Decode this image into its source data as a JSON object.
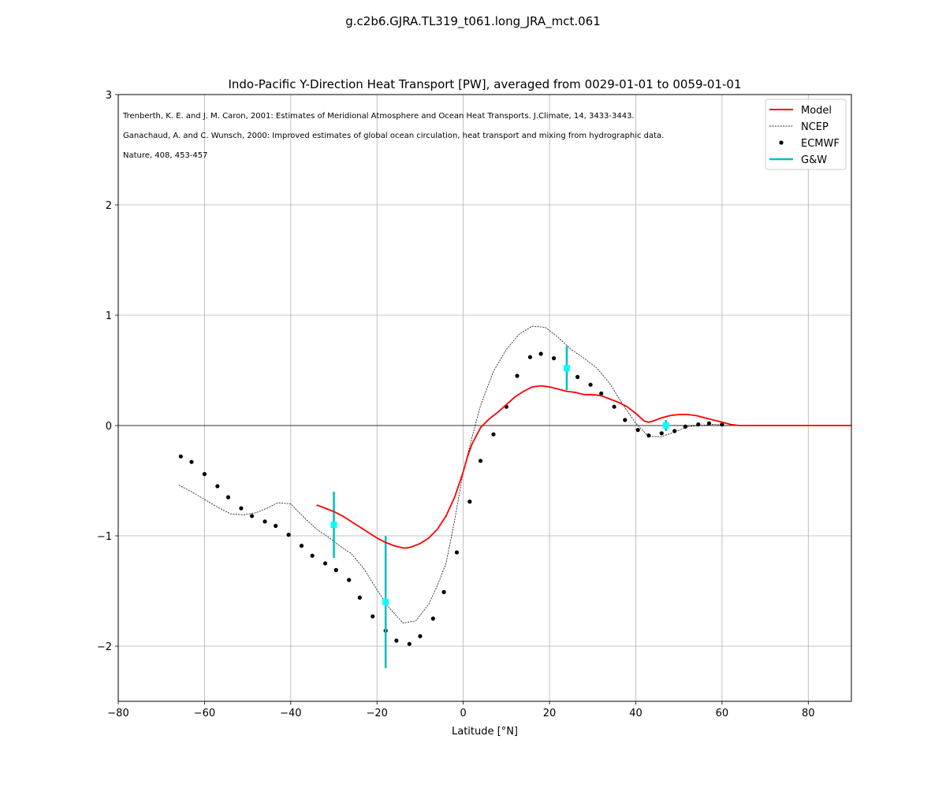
{
  "figure": {
    "suptitle": "g.c2b6.GJRA.TL319_t061.long_JRA_mct.061"
  },
  "chart_data": {
    "type": "line",
    "title": "Indo-Pacific Y-Direction Heat Transport [PW], averaged from 0029-01-01 to 0059-01-01",
    "xlabel": "Latitude [°N]",
    "ylabel": "",
    "xlim": [
      -80,
      90
    ],
    "ylim": [
      -2.5,
      3
    ],
    "xticks": [
      -80,
      -60,
      -40,
      -20,
      0,
      20,
      40,
      60,
      80
    ],
    "xtick_labels": [
      "−80",
      "−60",
      "−40",
      "−20",
      "0",
      "20",
      "40",
      "60",
      "80"
    ],
    "yticks": [
      -2,
      -1,
      0,
      1,
      2,
      3
    ],
    "ytick_labels": [
      "−2",
      "−1",
      "0",
      "1",
      "2",
      "3"
    ],
    "grid": true,
    "zero_line": true,
    "legend_position": "top-right",
    "annotations": [
      "Trenberth, K. E. and J. M. Caron, 2001: Estimates of Meridional Atmosphere and Ocean Heat Transports. J.Climate, 14, 3433-3443.",
      "Ganachaud, A. and C. Wunsch, 2000: Improved estimates of global ocean circulation, heat transport and mixing from hydrographic data.",
      "Nature, 408, 453-457"
    ],
    "colors": {
      "model": "#ff0000",
      "ncep": "#000000",
      "ecmwf": "#000000",
      "gw": "#00bfbf",
      "gw_marker": "#00ffff",
      "grid": "#b0b0b0"
    },
    "series": [
      {
        "name": "Model",
        "style": "solid-line",
        "x": [
          -34,
          -32,
          -30,
          -28,
          -26,
          -24,
          -22,
          -20,
          -18,
          -16,
          -14,
          -13,
          -12,
          -10,
          -8,
          -6,
          -4,
          -2,
          0,
          1,
          2,
          4,
          6,
          8,
          10,
          12,
          14,
          16,
          18,
          20,
          22,
          24,
          26,
          28,
          30,
          32,
          34,
          36,
          38,
          40,
          42,
          43,
          44,
          46,
          48,
          50,
          52,
          54,
          56,
          58,
          60,
          62,
          64,
          70,
          80,
          90
        ],
        "y": [
          -0.72,
          -0.75,
          -0.78,
          -0.82,
          -0.87,
          -0.92,
          -0.97,
          -1.02,
          -1.06,
          -1.09,
          -1.11,
          -1.11,
          -1.1,
          -1.07,
          -1.02,
          -0.94,
          -0.82,
          -0.65,
          -0.42,
          -0.28,
          -0.17,
          -0.02,
          0.06,
          0.12,
          0.19,
          0.26,
          0.31,
          0.35,
          0.36,
          0.35,
          0.33,
          0.31,
          0.3,
          0.28,
          0.28,
          0.27,
          0.24,
          0.21,
          0.17,
          0.11,
          0.04,
          0.03,
          0.04,
          0.07,
          0.09,
          0.1,
          0.1,
          0.09,
          0.07,
          0.05,
          0.03,
          0.01,
          0.0,
          0.0,
          0.0,
          0.0
        ]
      },
      {
        "name": "NCEP",
        "style": "dashed-line",
        "x": [
          -66,
          -63,
          -60,
          -57,
          -54,
          -51,
          -48,
          -45,
          -43,
          -40,
          -37,
          -34,
          -31,
          -28,
          -26,
          -23,
          -20,
          -17,
          -14,
          -11,
          -8,
          -6,
          -4,
          -2,
          0,
          2,
          4,
          7,
          10,
          13,
          16,
          19,
          22,
          25,
          28,
          31,
          34,
          37,
          40,
          43,
          46,
          49,
          52,
          55,
          58,
          61
        ],
        "y": [
          -0.54,
          -0.6,
          -0.67,
          -0.74,
          -0.8,
          -0.81,
          -0.79,
          -0.74,
          -0.7,
          -0.71,
          -0.83,
          -0.94,
          -1.02,
          -1.11,
          -1.16,
          -1.3,
          -1.49,
          -1.66,
          -1.79,
          -1.77,
          -1.62,
          -1.45,
          -1.25,
          -0.86,
          -0.42,
          -0.11,
          0.18,
          0.49,
          0.69,
          0.83,
          0.9,
          0.89,
          0.8,
          0.69,
          0.61,
          0.52,
          0.38,
          0.19,
          0.02,
          -0.1,
          -0.1,
          -0.06,
          -0.01,
          0.0,
          0.01,
          0.0
        ]
      },
      {
        "name": "ECMWF",
        "style": "dots",
        "x": [
          -65.5,
          -63,
          -60,
          -57,
          -54.5,
          -51.5,
          -49,
          -46,
          -43.5,
          -40.5,
          -37.5,
          -35,
          -32,
          -29.5,
          -26.5,
          -24,
          -21,
          -18,
          -15.5,
          -12.5,
          -10,
          -7,
          -4.5,
          -1.5,
          1.5,
          4,
          7,
          10,
          12.5,
          15.5,
          18,
          21,
          24,
          26.5,
          29.5,
          32,
          35,
          37.5,
          40.5,
          43,
          46,
          49,
          51.5,
          54.5,
          57,
          60
        ],
        "y": [
          -0.28,
          -0.33,
          -0.44,
          -0.55,
          -0.65,
          -0.75,
          -0.82,
          -0.87,
          -0.91,
          -0.99,
          -1.09,
          -1.18,
          -1.25,
          -1.31,
          -1.4,
          -1.56,
          -1.73,
          -1.86,
          -1.95,
          -1.98,
          -1.91,
          -1.75,
          -1.51,
          -1.15,
          -0.69,
          -0.32,
          -0.08,
          0.17,
          0.45,
          0.62,
          0.65,
          0.61,
          0.53,
          0.44,
          0.37,
          0.29,
          0.17,
          0.05,
          -0.04,
          -0.09,
          -0.07,
          -0.05,
          -0.01,
          0.01,
          0.02,
          0.01
        ]
      },
      {
        "name": "G&W",
        "style": "error-bars",
        "x": [
          -30,
          -18,
          24,
          47
        ],
        "y": [
          -0.9,
          -1.6,
          0.52,
          0.0
        ],
        "err": [
          0.3,
          0.6,
          0.2,
          0.05
        ]
      }
    ]
  }
}
